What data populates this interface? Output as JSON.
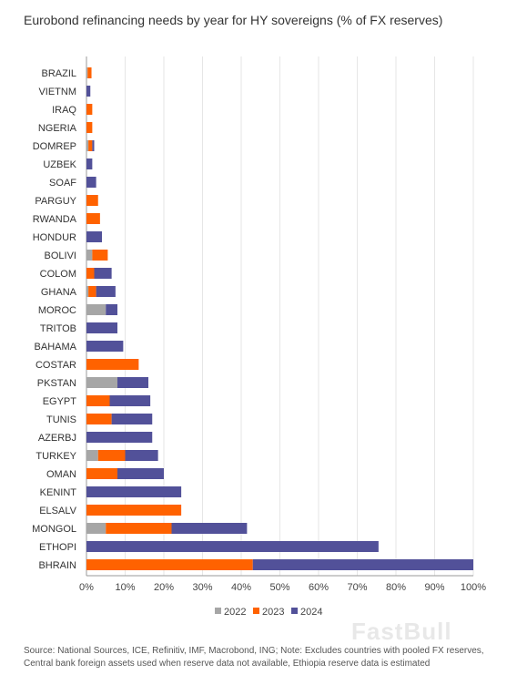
{
  "title": "Eurobond refinancing needs by year for HY sovereigns (% of FX reserves)",
  "footnote": "Source: National Sources, ICE, Refinitiv, IMF, Macrobond, ING; Note: Excludes countries with pooled FX reserves, Central bank foreign assets used when reserve data not available, Ethiopia reserve data is estimated",
  "watermark": "FastBull",
  "colors": {
    "2022": "#a6a6a6",
    "2023": "#ff6200",
    "2024": "#525199",
    "grid": "#e6e6e6",
    "axis": "#999999"
  },
  "chart_data": {
    "type": "bar",
    "orientation": "horizontal",
    "stacked": true,
    "categories": [
      "BRAZIL",
      "VIETNM",
      "IRAQ",
      "NGERIA",
      "DOMREP",
      "UZBEK",
      "SOAF",
      "PARGUY",
      "RWANDA",
      "HONDUR",
      "BOLIVI",
      "COLOM",
      "GHANA",
      "MOROC",
      "TRITOB",
      "BAHAMA",
      "COSTAR",
      "PKSTAN",
      "EGYPT",
      "TUNIS",
      "AZERBJ",
      "TURKEY",
      "OMAN",
      "KENINT",
      "ELSALV",
      "MONGOL",
      "ETHOPI",
      "BHRAIN"
    ],
    "series": [
      {
        "name": "2022",
        "values": [
          0.3,
          0,
          0,
          0,
          0.5,
          0,
          0,
          0,
          0,
          0,
          1.5,
          0,
          0.5,
          5,
          0,
          0,
          0,
          8,
          0,
          0,
          0,
          3,
          0,
          0,
          0,
          5,
          0,
          0
        ]
      },
      {
        "name": "2023",
        "values": [
          1,
          0,
          1.5,
          1.5,
          1,
          0,
          0,
          3,
          3.5,
          0,
          4,
          2,
          2,
          0,
          0,
          0,
          13.5,
          0,
          6,
          6.5,
          0,
          7,
          8,
          0,
          24.5,
          17,
          0,
          43
        ]
      },
      {
        "name": "2024",
        "values": [
          0,
          1,
          0,
          0,
          0.5,
          1.5,
          2.5,
          0,
          0,
          4,
          0,
          4.5,
          5,
          3,
          8,
          9.5,
          0,
          8,
          10.5,
          10.5,
          17,
          8.5,
          12,
          24.5,
          0,
          19.5,
          75.5,
          57
        ]
      }
    ],
    "xlim": [
      0,
      100
    ],
    "xticks": [
      "0%",
      "10%",
      "20%",
      "30%",
      "40%",
      "50%",
      "60%",
      "70%",
      "80%",
      "90%",
      "100%"
    ],
    "legend": [
      "2022",
      "2023",
      "2024"
    ],
    "legend_position": "bottom",
    "grid": true
  }
}
